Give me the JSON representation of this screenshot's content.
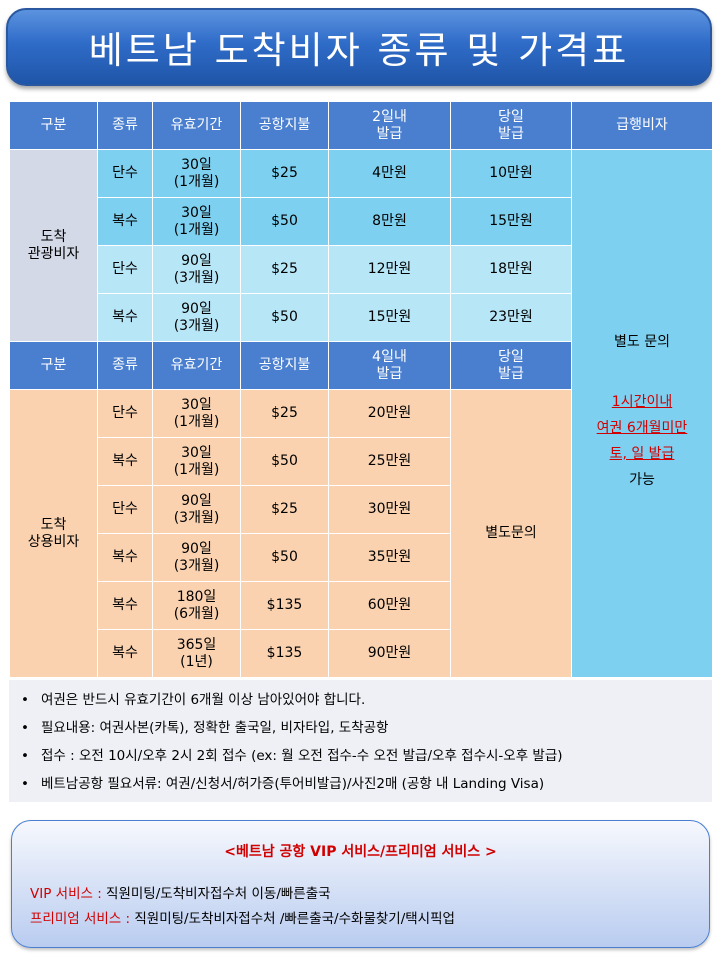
{
  "title": "베트남 도착비자 종류 및 가격표",
  "header1": [
    "구분",
    "종류",
    "유효기간",
    "공항지불",
    "2일내\n발급",
    "당일\n발급",
    "급행비자"
  ],
  "header2": [
    "구분",
    "종류",
    "유효기간",
    "공항지불",
    "4일내\n발급",
    "당일\n발급"
  ],
  "tourist": {
    "category": "도착\n관광비자",
    "rows": [
      {
        "type": "단수",
        "validity": "30일\n(1개월)",
        "fee": "$25",
        "normal": "4만원",
        "sameday": "10만원"
      },
      {
        "type": "복수",
        "validity": "30일\n(1개월)",
        "fee": "$50",
        "normal": "8만원",
        "sameday": "15만원"
      },
      {
        "type": "단수",
        "validity": "90일\n(3개월)",
        "fee": "$25",
        "normal": "12만원",
        "sameday": "18만원"
      },
      {
        "type": "복수",
        "validity": "90일\n(3개월)",
        "fee": "$50",
        "normal": "15만원",
        "sameday": "23만원"
      }
    ]
  },
  "business": {
    "category": "도착\n상용비자",
    "sameday": "별도문의",
    "rows": [
      {
        "type": "단수",
        "validity": "30일\n(1개월)",
        "fee": "$25",
        "normal": "20만원"
      },
      {
        "type": "복수",
        "validity": "30일\n(1개월)",
        "fee": "$50",
        "normal": "25만원"
      },
      {
        "type": "단수",
        "validity": "90일\n(3개월)",
        "fee": "$25",
        "normal": "30만원"
      },
      {
        "type": "복수",
        "validity": "90일\n(3개월)",
        "fee": "$50",
        "normal": "35만원"
      },
      {
        "type": "복수",
        "validity": "180일\n(6개월)",
        "fee": "$135",
        "normal": "60만원"
      },
      {
        "type": "복수",
        "validity": "365일\n(1년)",
        "fee": "$135",
        "normal": "90만원"
      }
    ]
  },
  "express": {
    "line1": "별도 문의",
    "red1": "1시간이내",
    "red2": "여권 6개월미만",
    "red3": "토, 일 발급",
    "line2": "가능"
  },
  "notes": [
    "여권은 반드시 유효기간이 6개월 이상 남아있어야 합니다.",
    "필요내용: 여권사본(카톡), 정확한 출국일, 비자타입, 도착공항",
    "접수 : 오전 10시/오후 2시 2회 접수  (ex: 월 오전 접수-수 오전 발급/오후 접수시-오후 발급)",
    "베트남공항 필요서류: 여권/신청서/허가증(투어비발급)/사진2매 (공항 내 Landing Visa)"
  ],
  "vip": {
    "title": "<베트남 공항 VIP 서비스/프리미엄 서비스 >",
    "vip_label": "VIP 서비스 :",
    "vip_text": " 직원미팅/도착비자접수처 이동/빠른출국",
    "premium_label": "프리미엄 서비스 :",
    "premium_text": " 직원미팅/도착비자접수처 /빠른출국/수화물찾기/택시픽업"
  },
  "colors": {
    "header": "#4a7fd0",
    "tourist_dark": "#7dd0f0",
    "tourist_light": "#b7e6f7",
    "tourist_category": "#d3d9e6",
    "business": "#fad2b0",
    "accent_red": "#d00000"
  }
}
